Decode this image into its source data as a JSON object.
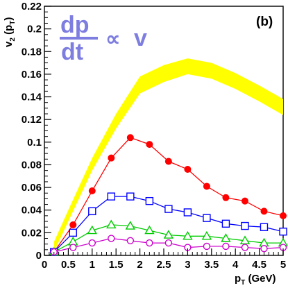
{
  "chart_data": {
    "type": "line",
    "title": "",
    "panel_label": "(b)",
    "annotation": {
      "numerator": "dp",
      "denominator": "dt",
      "relation": "∝",
      "variable": "v",
      "color": "#7e7ee0"
    },
    "xlabel": {
      "main": "p",
      "sub": "T",
      "suffix": " (GeV)"
    },
    "ylabel": {
      "main": "v",
      "sub": "2",
      "mid": " (p",
      "sub2": "T",
      "suffix": ")"
    },
    "xlim": [
      0,
      5
    ],
    "ylim": [
      0,
      0.22
    ],
    "x_ticks": [
      0,
      0.5,
      1,
      1.5,
      2,
      2.5,
      3,
      3.5,
      4,
      4.5,
      5
    ],
    "x_tick_labels": [
      "0",
      "0.5",
      "1",
      "1.5",
      "2",
      "2.5",
      "3",
      "3.5",
      "4",
      "4.5",
      "5"
    ],
    "y_ticks": [
      0,
      0.02,
      0.04,
      0.06,
      0.08,
      0.1,
      0.12,
      0.14,
      0.16,
      0.18,
      0.2,
      0.22
    ],
    "y_tick_labels": [
      "0",
      "0.02",
      "0.04",
      "0.06",
      "0.08",
      "0.1",
      "0.12",
      "0.14",
      "0.16",
      "0.18",
      "0.2",
      "0.22"
    ],
    "grid": false,
    "band": {
      "color": "#ffff00",
      "x": [
        0.2,
        0.5,
        1.0,
        1.5,
        2.0,
        2.5,
        3.0,
        3.5,
        4.0,
        4.5,
        5.0
      ],
      "upper": [
        0.012,
        0.04,
        0.086,
        0.125,
        0.158,
        0.168,
        0.174,
        0.17,
        0.161,
        0.15,
        0.138
      ],
      "lower": [
        0.003,
        0.03,
        0.075,
        0.112,
        0.143,
        0.153,
        0.16,
        0.156,
        0.147,
        0.136,
        0.124
      ]
    },
    "series": [
      {
        "color": "#ff0000",
        "marker": "filled-circle",
        "x": [
          0.2,
          0.6,
          1.0,
          1.4,
          1.8,
          2.2,
          2.6,
          3.0,
          3.4,
          3.8,
          4.2,
          4.6,
          5.0
        ],
        "values": [
          0.003,
          0.027,
          0.057,
          0.086,
          0.104,
          0.098,
          0.083,
          0.076,
          0.061,
          0.051,
          0.048,
          0.039,
          0.035
        ]
      },
      {
        "color": "#0000ff",
        "marker": "open-square",
        "x": [
          0.2,
          0.6,
          1.0,
          1.4,
          1.8,
          2.2,
          2.6,
          3.0,
          3.4,
          3.8,
          4.2,
          4.6,
          5.0
        ],
        "values": [
          0.003,
          0.02,
          0.039,
          0.052,
          0.052,
          0.048,
          0.041,
          0.038,
          0.033,
          0.028,
          0.026,
          0.025,
          0.021
        ]
      },
      {
        "color": "#00cc00",
        "marker": "open-triangle",
        "x": [
          0.2,
          0.6,
          1.0,
          1.4,
          1.8,
          2.2,
          2.6,
          3.0,
          3.4,
          3.8,
          4.2,
          4.6,
          5.0
        ],
        "values": [
          0.003,
          0.012,
          0.022,
          0.027,
          0.026,
          0.022,
          0.018,
          0.017,
          0.017,
          0.015,
          0.013,
          0.011,
          0.011
        ]
      },
      {
        "color": "#cc00cc",
        "marker": "open-circle",
        "x": [
          0.2,
          0.6,
          1.0,
          1.4,
          1.8,
          2.2,
          2.6,
          3.0,
          3.4,
          3.8,
          4.2,
          4.6,
          5.0
        ],
        "values": [
          0.003,
          0.007,
          0.011,
          0.015,
          0.013,
          0.011,
          0.011,
          0.007,
          0.008,
          0.008,
          0.007,
          0.006,
          0.007
        ]
      }
    ]
  }
}
